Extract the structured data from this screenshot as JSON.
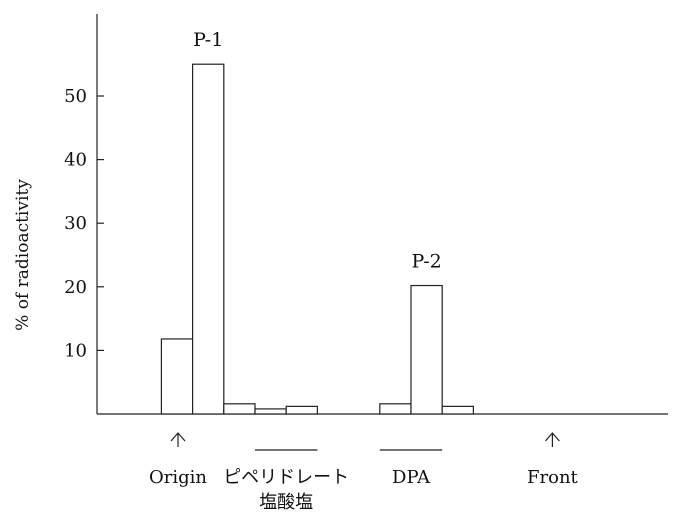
{
  "chart_data": {
    "type": "bar",
    "title": "",
    "xlabel": "",
    "ylabel": "% of radioactivity",
    "ylim": [
      0,
      60
    ],
    "yticks": [
      10,
      20,
      30,
      40,
      50
    ],
    "grid": false,
    "fraction_count": 15,
    "values": [
      {
        "fraction": 3,
        "value": 11.8
      },
      {
        "fraction": 4,
        "value": 55
      },
      {
        "fraction": 5,
        "value": 1.6
      },
      {
        "fraction": 6,
        "value": 0.8
      },
      {
        "fraction": 7,
        "value": 1.2
      },
      {
        "fraction": 10,
        "value": 1.6
      },
      {
        "fraction": 11,
        "value": 20.2
      },
      {
        "fraction": 12,
        "value": 1.2
      }
    ],
    "peak_labels": [
      {
        "text": "P-1",
        "fraction": 4
      },
      {
        "text": "P-2",
        "fraction": 11
      }
    ],
    "x_markers": [
      {
        "text": "Origin",
        "type": "arrow",
        "fraction_center": 3.5
      },
      {
        "text": "ピペリドレート\n塩酸塩",
        "type": "line",
        "fraction_from": 6,
        "fraction_to": 8
      },
      {
        "text": "DPA",
        "type": "line",
        "fraction_from": 10,
        "fraction_to": 12
      },
      {
        "text": "Front",
        "type": "arrow",
        "fraction_center": 15.5
      }
    ]
  }
}
